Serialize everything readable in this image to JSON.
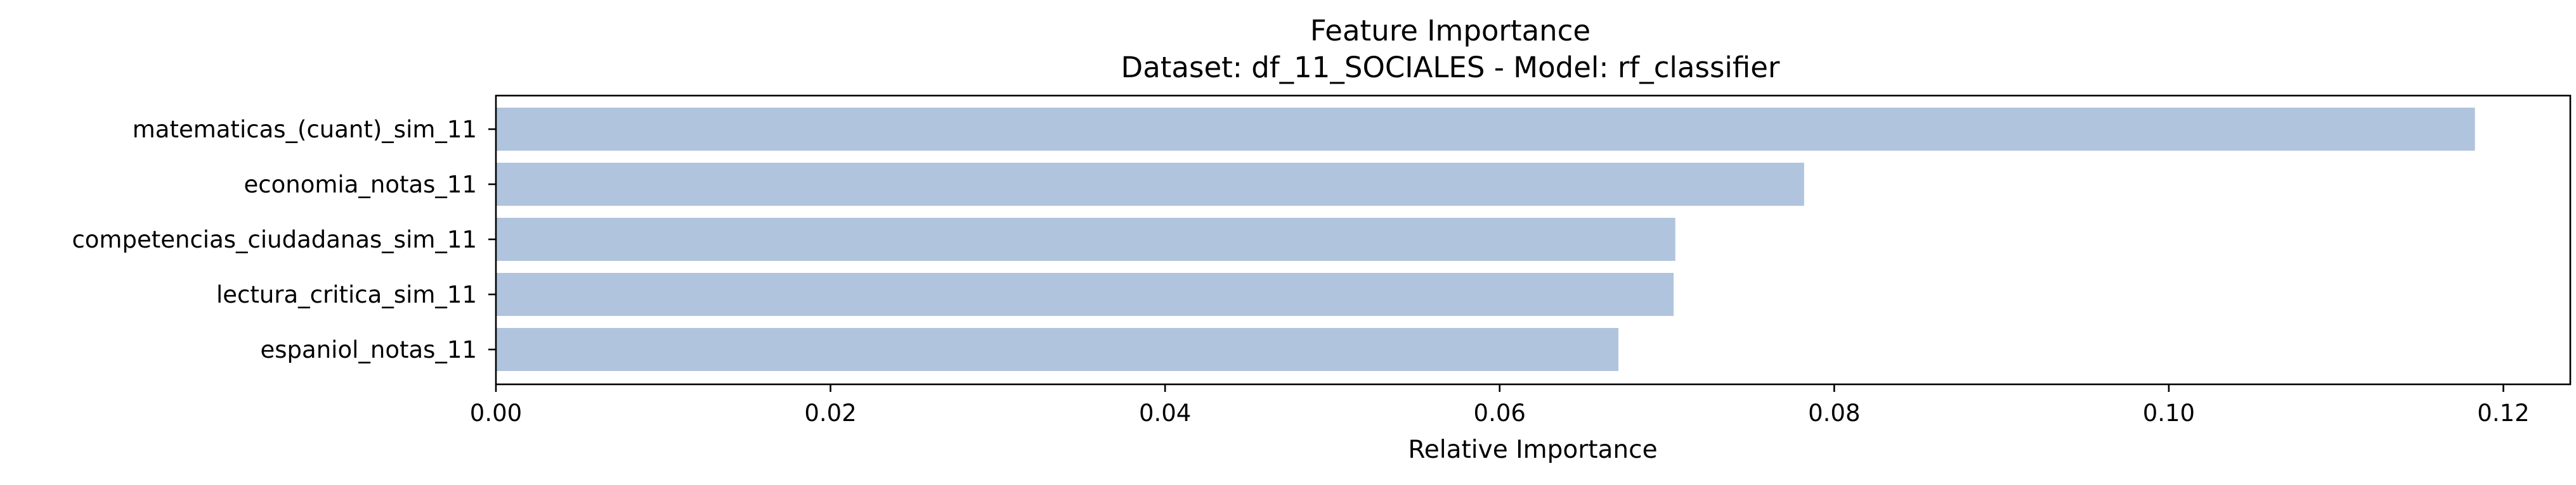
{
  "chart_data": {
    "type": "bar",
    "orientation": "horizontal",
    "title": "Feature Importance",
    "subtitle": "Dataset: df_11_SOCIALES  -  Model: rf_classifier",
    "xlabel": "Relative Importance",
    "ylabel": "",
    "categories": [
      "matematicas_(cuant)_sim_11",
      "economia_notas_11",
      "competencias_ciudadanas_sim_11",
      "lectura_critica_sim_11",
      "espaniol_notas_11"
    ],
    "values": [
      0.1183,
      0.0782,
      0.0705,
      0.0704,
      0.0671
    ],
    "xlim": [
      0,
      0.124
    ],
    "xticks": [
      0.0,
      0.02,
      0.04,
      0.06,
      0.08,
      0.1,
      0.12
    ],
    "xtick_labels": [
      "0.00",
      "0.02",
      "0.04",
      "0.06",
      "0.08",
      "0.10",
      "0.12"
    ],
    "bar_color": "#b0c4de",
    "grid": false,
    "legend": "none"
  }
}
